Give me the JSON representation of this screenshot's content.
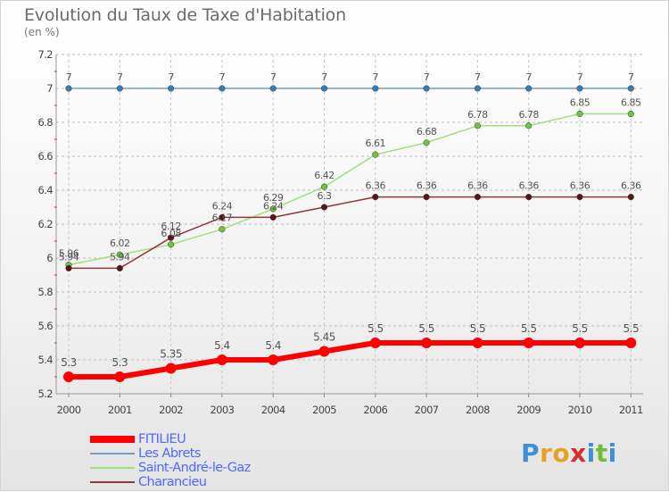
{
  "title": "Evolution du Taux de Taxe d'Habitation",
  "unit": "(en %)",
  "chart_data": {
    "type": "line",
    "title": "Evolution du Taux de Taxe d'Habitation",
    "ylabel": "(en %)",
    "xlabel": "",
    "x": [
      2000,
      2001,
      2002,
      2003,
      2004,
      2005,
      2006,
      2007,
      2008,
      2009,
      2010,
      2011
    ],
    "x_tick_labels": [
      "2000",
      "2001",
      "2002",
      "2003",
      "2004",
      "2005",
      "2006",
      "2007",
      "2008",
      "2009",
      "2010",
      "2011"
    ],
    "ylim": [
      5.2,
      7.2
    ],
    "y_ticks": [
      5.2,
      5.4,
      5.6,
      5.8,
      6,
      6.2,
      6.4,
      6.6,
      6.8,
      7,
      7.2
    ],
    "y_tick_labels": [
      "5.2",
      "5.4",
      "5.6",
      "5.8",
      "6",
      "6.2",
      "6.4",
      "6.6",
      "6.8",
      "7",
      "7.2"
    ],
    "grid": "horizontal dashed",
    "legend_position": "bottom-left",
    "series": [
      {
        "name": "Les Abrets",
        "color": "#6fa0c8",
        "marker_color": "#2f7fc0",
        "values": [
          7,
          7,
          7,
          7,
          7,
          7,
          7,
          7,
          7,
          7,
          7,
          7
        ],
        "labels": [
          "7",
          "7",
          "7",
          "7",
          "7",
          "7",
          "7",
          "7",
          "7",
          "7",
          "7",
          "7"
        ]
      },
      {
        "name": "Saint-André-le-Gaz",
        "color": "#9ee07a",
        "marker_color": "#6ec43c",
        "values": [
          5.96,
          6.02,
          6.08,
          6.17,
          6.29,
          6.42,
          6.61,
          6.68,
          6.78,
          6.78,
          6.85,
          6.85
        ],
        "labels": [
          "5.96",
          "6.02",
          "6.08",
          "6.17",
          "6.29",
          "6.42",
          "6.61",
          "6.68",
          "6.78",
          "6.78",
          "6.85",
          "6.85"
        ]
      },
      {
        "name": "Charancieu",
        "color": "#8c3a3a",
        "marker_color": "#5a1414",
        "values": [
          5.94,
          5.94,
          6.12,
          6.24,
          6.24,
          6.3,
          6.36,
          6.36,
          6.36,
          6.36,
          6.36,
          6.36
        ],
        "labels": [
          "5.94",
          "5.94",
          "6.12",
          "6.24",
          "6.24",
          "6.3",
          "6.36",
          "6.36",
          "6.36",
          "6.36",
          "6.36",
          "6.36"
        ]
      },
      {
        "name": "FITILIEU",
        "color": "#ff0000",
        "marker_color": "#ff0000",
        "values": [
          5.3,
          5.3,
          5.35,
          5.4,
          5.4,
          5.45,
          5.5,
          5.5,
          5.5,
          5.5,
          5.5,
          5.5
        ],
        "labels": [
          "5.3",
          "5.3",
          "5.35",
          "5.4",
          "5.4",
          "5.45",
          "5.5",
          "5.5",
          "5.5",
          "5.5",
          "5.5",
          "5.5"
        ]
      }
    ]
  },
  "legend": [
    {
      "label": "FITILIEU",
      "color": "#ff0000"
    },
    {
      "label": "Les Abrets",
      "color": "#6fa0c8"
    },
    {
      "label": "Saint-André-le-Gaz",
      "color": "#9ee07a"
    },
    {
      "label": "Charancieu",
      "color": "#8c3a3a"
    }
  ],
  "logo": {
    "letters": [
      "P",
      "r",
      "o",
      "x",
      "i",
      "t",
      "i"
    ],
    "colors": [
      "#3d8fd6",
      "#f0a020",
      "#e8a020",
      "#d03030",
      "#3d8fd6",
      "#6cbf3a",
      "#3d8fd6"
    ]
  }
}
